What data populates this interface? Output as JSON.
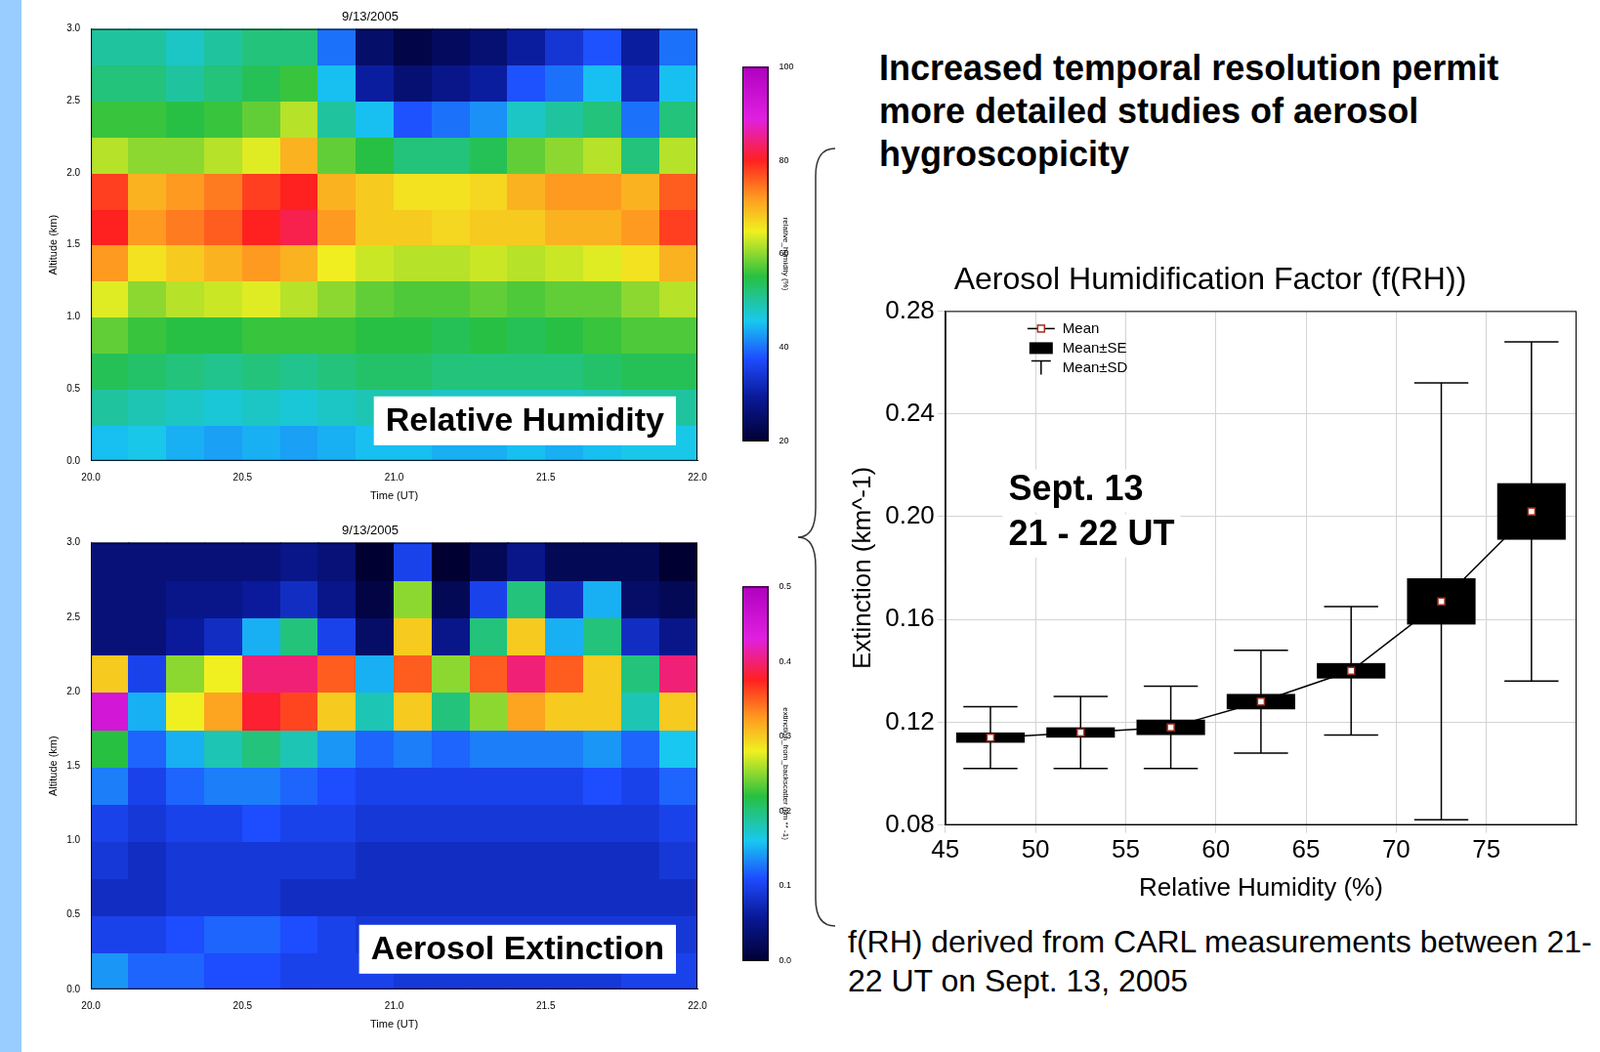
{
  "heading": "Increased temporal resolution permit more detailed studies of aerosol hygroscopicity",
  "caption": "f(RH) derived from CARL measurements between 21-22 UT on Sept. 13, 2005",
  "chart_data": [
    {
      "type": "heatmap",
      "title": "9/13/2005",
      "x_label": "Time (UT)",
      "y_label": "Altitude (km)",
      "annotation": "Relative Humidity",
      "grid": false,
      "xlim": [
        20,
        22
      ],
      "xticks": [
        {
          "value": 20,
          "label": "20.0"
        },
        20.5,
        {
          "value": 21,
          "label": "21.0"
        },
        21.5,
        {
          "value": 22,
          "label": "22.0"
        }
      ],
      "ylim": [
        0,
        3
      ],
      "yticks": [
        {
          "value": 0,
          "label": "0.0"
        },
        0.5,
        {
          "value": 1,
          "label": "1.0"
        },
        1.5,
        {
          "value": 2,
          "label": "2.0"
        },
        2.5,
        {
          "value": 3,
          "label": "3.0"
        }
      ],
      "x_bins": [
        20,
        20.125,
        20.25,
        20.375,
        20.5,
        20.625,
        20.75,
        20.875,
        21,
        21.125,
        21.25,
        21.375,
        21.5,
        21.625,
        21.75,
        21.875,
        22
      ],
      "y_bins": [
        0,
        0.25,
        0.5,
        0.75,
        1,
        1.25,
        1.5,
        1.75,
        2,
        2.25,
        2.5,
        2.75,
        3
      ],
      "cells": [
        [
          45,
          46,
          44,
          43,
          44,
          43,
          44,
          45,
          45,
          44,
          44,
          45,
          44,
          45,
          46,
          46
        ],
        [
          50,
          49,
          48,
          47,
          48,
          47,
          48,
          49,
          49,
          48,
          48,
          48,
          48,
          49,
          50,
          50
        ],
        [
          54,
          53,
          52,
          51,
          52,
          51,
          52,
          53,
          53,
          52,
          52,
          52,
          52,
          53,
          54,
          54
        ],
        [
          58,
          56,
          55,
          55,
          56,
          56,
          56,
          55,
          55,
          54,
          55,
          54,
          55,
          56,
          57,
          57
        ],
        [
          64,
          60,
          62,
          63,
          64,
          62,
          60,
          58,
          57,
          57,
          58,
          57,
          58,
          58,
          60,
          62
        ],
        [
          72,
          66,
          68,
          70,
          72,
          70,
          65,
          63,
          62,
          62,
          63,
          62,
          63,
          64,
          66,
          70
        ],
        [
          80,
          72,
          74,
          76,
          80,
          82,
          72,
          68,
          68,
          67,
          68,
          68,
          70,
          70,
          72,
          78
        ],
        [
          78,
          70,
          72,
          74,
          78,
          80,
          70,
          68,
          66,
          66,
          67,
          70,
          72,
          72,
          70,
          76
        ],
        [
          62,
          60,
          60,
          62,
          64,
          70,
          58,
          55,
          52,
          52,
          54,
          58,
          60,
          62,
          52,
          62
        ],
        [
          56,
          56,
          55,
          56,
          58,
          62,
          50,
          45,
          38,
          40,
          42,
          48,
          50,
          52,
          40,
          52
        ],
        [
          52,
          52,
          50,
          52,
          54,
          56,
          45,
          30,
          26,
          28,
          30,
          38,
          40,
          45,
          32,
          45
        ],
        [
          50,
          50,
          48,
          50,
          52,
          52,
          40,
          25,
          22,
          24,
          26,
          30,
          34,
          38,
          30,
          40
        ]
      ],
      "colorbar": {
        "label": "relative_humidity (%)",
        "range": [
          20,
          100
        ],
        "ticks": [
          20,
          40,
          60,
          80,
          100
        ]
      }
    },
    {
      "type": "heatmap",
      "title": "9/13/2005",
      "x_label": "Time (UT)",
      "y_label": "Altitude (km)",
      "annotation": "Aerosol Extinction",
      "grid": false,
      "xlim": [
        20,
        22
      ],
      "xticks": [
        {
          "value": 20,
          "label": "20.0"
        },
        20.5,
        {
          "value": 21,
          "label": "21.0"
        },
        21.5,
        {
          "value": 22,
          "label": "22.0"
        }
      ],
      "ylim": [
        0,
        3
      ],
      "yticks": [
        {
          "value": 0,
          "label": "0.0"
        },
        0.5,
        {
          "value": 1,
          "label": "1.0"
        },
        1.5,
        {
          "value": 2,
          "label": "2.0"
        },
        2.5,
        {
          "value": 3,
          "label": "3.0"
        }
      ],
      "x_bins": [
        20,
        20.125,
        20.25,
        20.375,
        20.5,
        20.625,
        20.75,
        20.875,
        21,
        21.125,
        21.25,
        21.375,
        21.5,
        21.625,
        21.75,
        21.875,
        22
      ],
      "y_bins": [
        0,
        0.25,
        0.5,
        0.75,
        1,
        1.25,
        1.5,
        1.75,
        2,
        2.25,
        2.5,
        2.75,
        3
      ],
      "cells": [
        [
          0.14,
          0.12,
          0.12,
          0.11,
          0.11,
          0.1,
          0.1,
          0.1,
          0.09,
          0.09,
          0.09,
          0.09,
          0.09,
          0.09,
          0.1,
          0.1
        ],
        [
          0.1,
          0.1,
          0.11,
          0.12,
          0.12,
          0.11,
          0.1,
          0.09,
          0.09,
          0.09,
          0.09,
          0.09,
          0.09,
          0.09,
          0.09,
          0.09
        ],
        [
          0.08,
          0.08,
          0.09,
          0.09,
          0.09,
          0.08,
          0.08,
          0.08,
          0.08,
          0.08,
          0.08,
          0.08,
          0.08,
          0.08,
          0.08,
          0.08
        ],
        [
          0.09,
          0.08,
          0.09,
          0.09,
          0.09,
          0.09,
          0.09,
          0.08,
          0.08,
          0.08,
          0.08,
          0.08,
          0.08,
          0.08,
          0.08,
          0.09
        ],
        [
          0.1,
          0.09,
          0.1,
          0.1,
          0.11,
          0.1,
          0.1,
          0.09,
          0.09,
          0.09,
          0.09,
          0.09,
          0.09,
          0.09,
          0.09,
          0.1
        ],
        [
          0.13,
          0.1,
          0.12,
          0.13,
          0.13,
          0.12,
          0.11,
          0.1,
          0.1,
          0.1,
          0.1,
          0.1,
          0.1,
          0.11,
          0.1,
          0.12
        ],
        [
          0.22,
          0.12,
          0.15,
          0.18,
          0.2,
          0.18,
          0.14,
          0.12,
          0.13,
          0.12,
          0.13,
          0.13,
          0.13,
          0.14,
          0.12,
          0.16
        ],
        [
          0.45,
          0.15,
          0.28,
          0.32,
          0.38,
          0.36,
          0.3,
          0.18,
          0.3,
          0.2,
          0.25,
          0.32,
          0.3,
          0.3,
          0.18,
          0.3
        ],
        [
          0.3,
          0.1,
          0.25,
          0.28,
          0.4,
          0.4,
          0.35,
          0.15,
          0.35,
          0.25,
          0.35,
          0.4,
          0.35,
          0.3,
          0.2,
          0.4
        ],
        [
          0.04,
          0.04,
          0.06,
          0.08,
          0.15,
          0.2,
          0.1,
          0.03,
          0.3,
          0.05,
          0.2,
          0.3,
          0.15,
          0.2,
          0.08,
          0.05
        ],
        [
          0.04,
          0.04,
          0.05,
          0.05,
          0.06,
          0.08,
          0.05,
          0.01,
          0.25,
          0.02,
          0.1,
          0.2,
          0.08,
          0.15,
          0.03,
          0.02
        ],
        [
          0.04,
          0.04,
          0.04,
          0.04,
          0.04,
          0.05,
          0.04,
          0.0,
          0.1,
          0.0,
          0.02,
          0.05,
          0.02,
          0.02,
          0.02,
          0.0
        ]
      ],
      "colorbar": {
        "label": "extinction_from_backscatter (km ** -1)",
        "range": [
          0,
          0.5
        ],
        "ticks": [
          {
            "value": 0,
            "label": "0.0"
          },
          0.1,
          0.2,
          0.3,
          0.4,
          0.5
        ]
      }
    },
    {
      "type": "line",
      "title": "Aerosol Humidification Factor (f(RH))",
      "x_label": "Relative Humidity (%)",
      "y_label": "Extinction (km^-1)",
      "annotation": [
        "Sept. 13",
        "21 - 22 UT"
      ],
      "grid": true,
      "legend": "upper left",
      "xlim": [
        45,
        80
      ],
      "xticks": [
        45,
        50,
        55,
        60,
        65,
        70,
        75
      ],
      "ylim": [
        0.08,
        0.28
      ],
      "yticks": [
        0.08,
        0.12,
        0.16,
        {
          "value": 0.2,
          "label": "0.20"
        },
        0.24,
        0.28
      ],
      "x": [
        47.5,
        52.5,
        57.5,
        62.5,
        67.5,
        72.5,
        77.5
      ],
      "series": [
        {
          "name": "Mean",
          "color": "#000000",
          "marker": "square",
          "values": [
            0.114,
            0.116,
            0.118,
            0.128,
            0.14,
            0.167,
            0.202
          ],
          "se": {
            "name": "Mean±SE",
            "values": [
              0.002,
              0.002,
              0.003,
              0.003,
              0.003,
              0.009,
              0.011
            ]
          },
          "sd": {
            "name": "Mean±SD",
            "values": [
              0.012,
              0.014,
              0.016,
              0.02,
              0.025,
              0.085,
              0.066
            ]
          }
        }
      ]
    }
  ]
}
